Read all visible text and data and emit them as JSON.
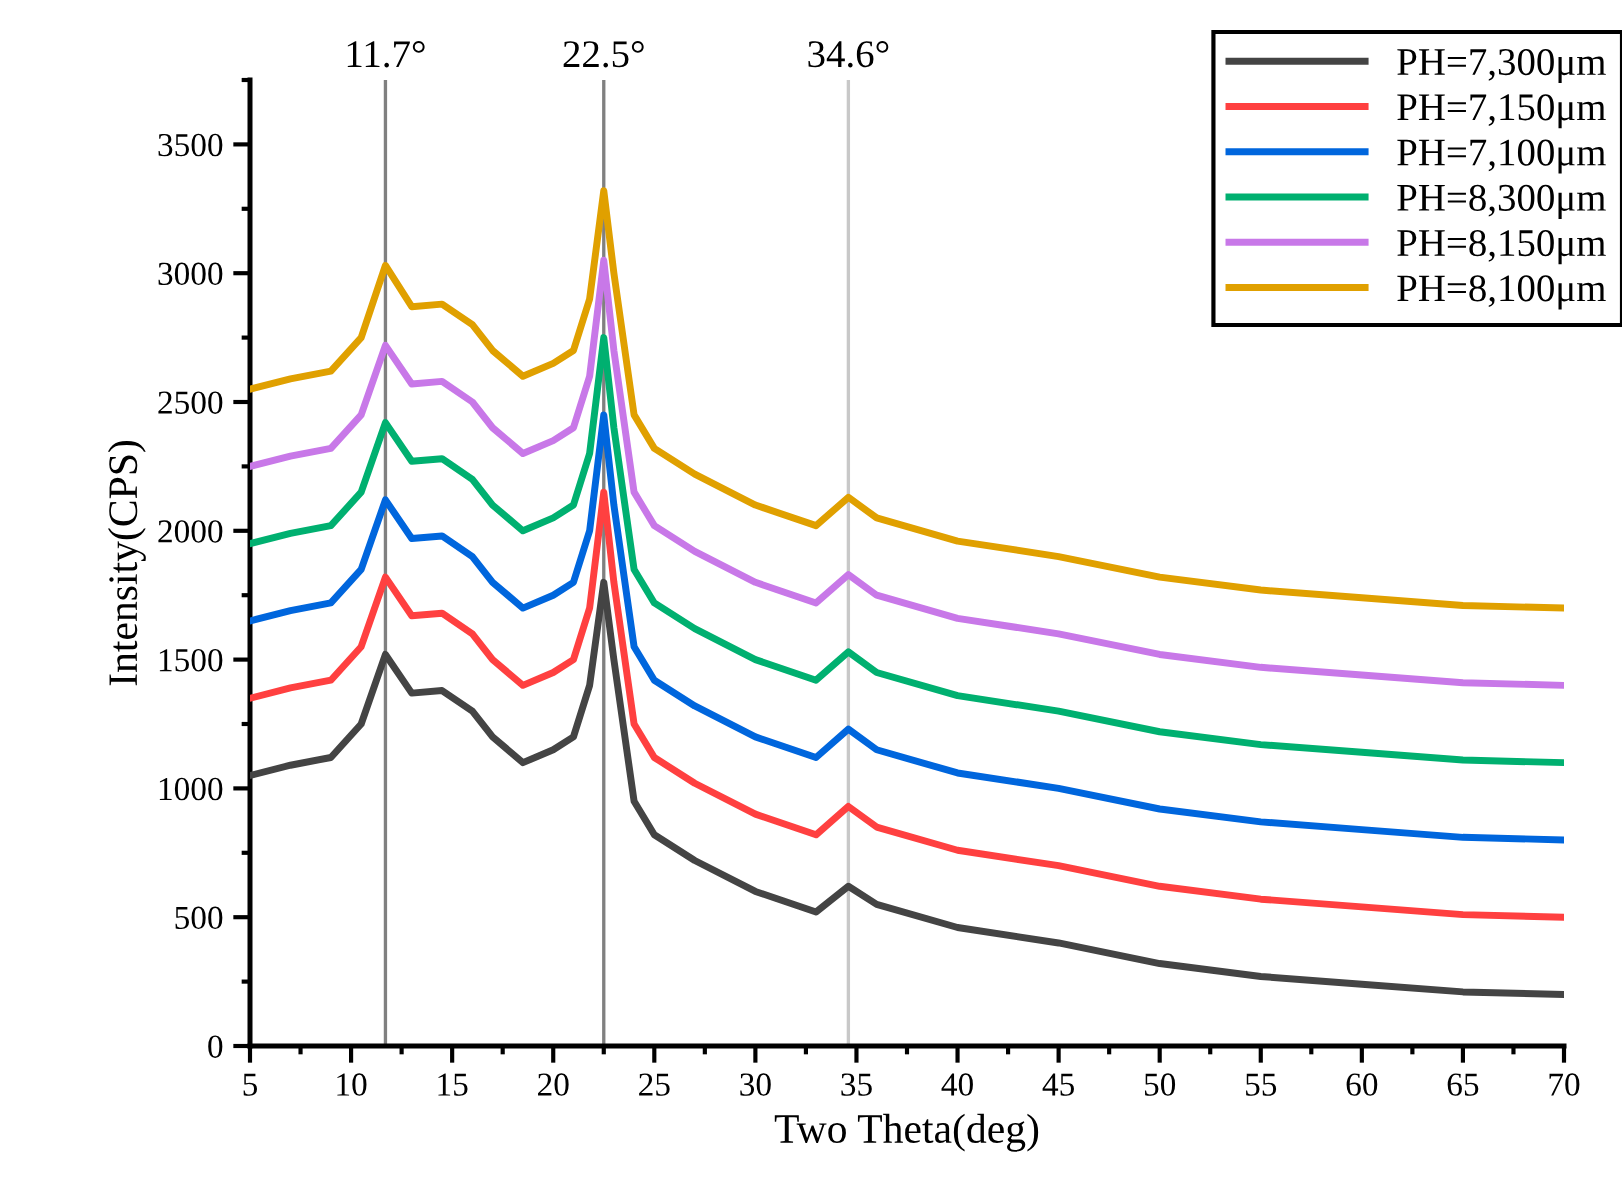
{
  "chart_data": {
    "type": "line",
    "xlabel": "Two Theta(deg)",
    "ylabel": "Intensity(CPS)",
    "x": [
      5,
      7,
      9,
      10.5,
      11.7,
      13,
      14.5,
      16,
      17,
      18.5,
      20,
      21,
      21.8,
      22.5,
      23,
      24,
      25,
      27,
      30,
      33,
      34.6,
      36,
      40,
      45,
      50,
      55,
      60,
      65,
      70
    ],
    "series": [
      {
        "name": "PH=7,300μm",
        "color": "#444444",
        "values": [
          1050,
          1090,
          1120,
          1250,
          1520,
          1370,
          1380,
          1300,
          1200,
          1100,
          1150,
          1200,
          1400,
          1800,
          1500,
          950,
          820,
          720,
          600,
          520,
          620,
          550,
          460,
          400,
          320,
          270,
          240,
          210,
          200
        ]
      },
      {
        "name": "PH=7,150μm",
        "color": "#ff4040",
        "values": [
          1350,
          1390,
          1420,
          1550,
          1820,
          1670,
          1680,
          1600,
          1500,
          1400,
          1450,
          1500,
          1700,
          2150,
          1800,
          1250,
          1120,
          1020,
          900,
          820,
          930,
          850,
          760,
          700,
          620,
          570,
          540,
          510,
          500
        ]
      },
      {
        "name": "PH=7,100μm",
        "color": "#0066dd",
        "values": [
          1650,
          1690,
          1720,
          1850,
          2120,
          1970,
          1980,
          1900,
          1800,
          1700,
          1750,
          1800,
          2000,
          2450,
          2100,
          1550,
          1420,
          1320,
          1200,
          1120,
          1230,
          1150,
          1060,
          1000,
          920,
          870,
          840,
          810,
          800
        ]
      },
      {
        "name": "PH=8,300μm",
        "color": "#00b070",
        "values": [
          1950,
          1990,
          2020,
          2150,
          2420,
          2270,
          2280,
          2200,
          2100,
          2000,
          2050,
          2100,
          2300,
          2750,
          2400,
          1850,
          1720,
          1620,
          1500,
          1420,
          1530,
          1450,
          1360,
          1300,
          1220,
          1170,
          1140,
          1110,
          1100
        ]
      },
      {
        "name": "PH=8,150μm",
        "color": "#c878e8",
        "values": [
          2250,
          2290,
          2320,
          2450,
          2720,
          2570,
          2580,
          2500,
          2400,
          2300,
          2350,
          2400,
          2600,
          3050,
          2700,
          2150,
          2020,
          1920,
          1800,
          1720,
          1830,
          1750,
          1660,
          1600,
          1520,
          1470,
          1440,
          1410,
          1400
        ]
      },
      {
        "name": "PH=8,100μm",
        "color": "#e0a000",
        "values": [
          2550,
          2590,
          2620,
          2750,
          3030,
          2870,
          2880,
          2800,
          2700,
          2600,
          2650,
          2700,
          2900,
          3320,
          3000,
          2450,
          2320,
          2220,
          2100,
          2020,
          2130,
          2050,
          1960,
          1900,
          1820,
          1770,
          1740,
          1710,
          1700
        ]
      }
    ],
    "xlim": [
      5,
      70
    ],
    "xticks": [
      5,
      10,
      15,
      20,
      25,
      30,
      35,
      40,
      45,
      50,
      55,
      60,
      65,
      70
    ],
    "ylim": [
      0,
      3750
    ],
    "yticks": [
      0,
      500,
      1000,
      1500,
      2000,
      2500,
      3000,
      3500
    ],
    "ref_lines": [
      {
        "axis": "x",
        "value": 11.7,
        "label": "11.7°",
        "color": "#808080"
      },
      {
        "axis": "x",
        "value": 22.5,
        "label": "22.5°",
        "color": "#808080"
      },
      {
        "axis": "x",
        "value": 34.6,
        "label": "34.6°",
        "color": "#c8c8c8"
      }
    ],
    "grid": false,
    "legend": "top right",
    "marker": "none",
    "line_style": "solid"
  }
}
